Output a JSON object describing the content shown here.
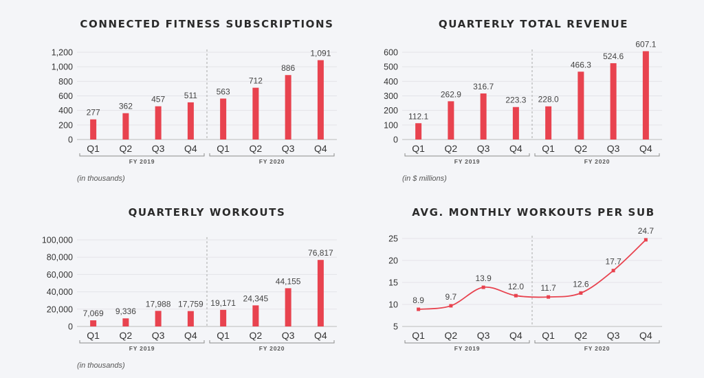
{
  "chart_data": [
    {
      "type": "bar",
      "title": "CONNECTED FITNESS SUBSCRIPTIONS",
      "categories": [
        "Q1",
        "Q2",
        "Q3",
        "Q4",
        "Q1",
        "Q2",
        "Q3",
        "Q4"
      ],
      "values": [
        277,
        362,
        457,
        511,
        563,
        712,
        886,
        1091
      ],
      "value_labels": [
        "277",
        "362",
        "457",
        "511",
        "563",
        "712",
        "886",
        "1,091"
      ],
      "yticks": [
        "0",
        "200",
        "400",
        "600",
        "800",
        "1,000",
        "1,200"
      ],
      "ylim": [
        0,
        1200
      ],
      "groups": [
        "FY 2019",
        "FY 2020"
      ],
      "note": "(in thousands)",
      "color": "#e8434f"
    },
    {
      "type": "bar",
      "title": "QUARTERLY TOTAL REVENUE",
      "categories": [
        "Q1",
        "Q2",
        "Q3",
        "Q4",
        "Q1",
        "Q2",
        "Q3",
        "Q4"
      ],
      "values": [
        112.1,
        262.9,
        316.7,
        223.3,
        228.0,
        466.3,
        524.6,
        607.1
      ],
      "value_labels": [
        "112.1",
        "262.9",
        "316.7",
        "223.3",
        "228.0",
        "466.3",
        "524.6",
        "607.1"
      ],
      "yticks": [
        "0",
        "100",
        "200",
        "300",
        "400",
        "500",
        "600"
      ],
      "ylim": [
        0,
        600
      ],
      "groups": [
        "FY 2019",
        "FY 2020"
      ],
      "note": "(in $ millions)",
      "color": "#e8434f"
    },
    {
      "type": "bar",
      "title": "QUARTERLY WORKOUTS",
      "categories": [
        "Q1",
        "Q2",
        "Q3",
        "Q4",
        "Q1",
        "Q2",
        "Q3",
        "Q4"
      ],
      "values": [
        7069,
        9336,
        17988,
        17759,
        19171,
        24345,
        44155,
        76817
      ],
      "value_labels": [
        "7,069",
        "9,336",
        "17,988",
        "17,759",
        "19,171",
        "24,345",
        "44,155",
        "76,817"
      ],
      "yticks": [
        "0",
        "20,000",
        "40,000",
        "60,000",
        "80,000",
        "100,000"
      ],
      "ylim": [
        0,
        100000
      ],
      "groups": [
        "FY 2019",
        "FY 2020"
      ],
      "note": "(in thousands)",
      "color": "#e8434f"
    },
    {
      "type": "line",
      "title": "AVG. MONTHLY WORKOUTS PER SUB",
      "categories": [
        "Q1",
        "Q2",
        "Q3",
        "Q4",
        "Q1",
        "Q2",
        "Q3",
        "Q4"
      ],
      "values": [
        8.9,
        9.7,
        13.9,
        12.0,
        11.7,
        12.6,
        17.7,
        24.7
      ],
      "value_labels": [
        "8.9",
        "9.7",
        "13.9",
        "12.0",
        "11.7",
        "12.6",
        "17.7",
        "24.7"
      ],
      "yticks": [
        "5",
        "10",
        "15",
        "20",
        "25"
      ],
      "ylim": [
        5,
        25
      ],
      "groups": [
        "FY 2019",
        "FY 2020"
      ],
      "color": "#e8434f"
    }
  ]
}
